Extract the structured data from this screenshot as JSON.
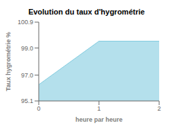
{
  "chart_data": {
    "type": "area",
    "title": "Evolution du taux d'hygrométrie",
    "xlabel": "heure par heure",
    "ylabel": "Taux hygrométrie %",
    "x": [
      0,
      1,
      2
    ],
    "values": [
      96.3,
      99.5,
      99.5
    ],
    "color": "#82cce0",
    "xlim": [
      0,
      2
    ],
    "ylim": [
      95.1,
      100.9
    ],
    "xticks": [
      0,
      1,
      2
    ],
    "yticks": [
      95.1,
      {
        "value": 97.0,
        "label": "97.0"
      },
      {
        "value": 99.0,
        "label": "99.0"
      },
      100.9
    ],
    "grid": false
  }
}
